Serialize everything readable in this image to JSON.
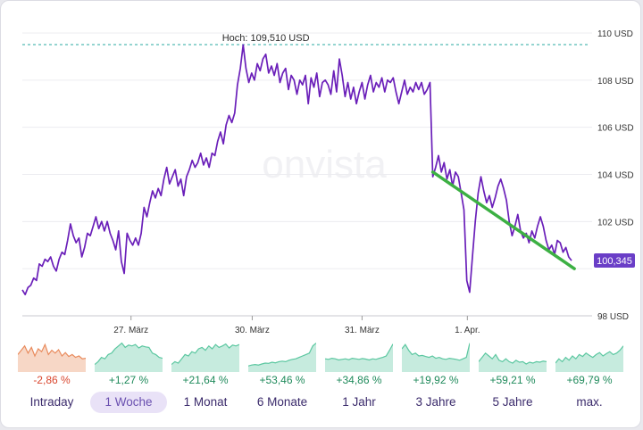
{
  "chart_data": {
    "type": "line",
    "watermark": "onvista",
    "high_label": "Hoch: 109,510 USD",
    "high_value": 109.51,
    "last_value": 100.345,
    "last_label": "100,345",
    "y_ticks": [
      98,
      100,
      102,
      104,
      106,
      108,
      110
    ],
    "y_tick_labels": [
      "98 USD",
      "",
      "102 USD",
      "104 USD",
      "106 USD",
      "108 USD",
      "110 USD"
    ],
    "ylim": [
      98,
      110
    ],
    "xlim": [
      0,
      100
    ],
    "x_ticks": [
      {
        "x": 19.2,
        "label": "27. März"
      },
      {
        "x": 40.6,
        "label": "30. März"
      },
      {
        "x": 60.0,
        "label": "31. März"
      },
      {
        "x": 78.6,
        "label": "1. Apr."
      }
    ],
    "series": [
      {
        "points": [
          [
            0,
            99.1
          ],
          [
            0.5,
            98.9
          ],
          [
            1,
            99.2
          ],
          [
            1.5,
            99.3
          ],
          [
            2,
            99.6
          ],
          [
            2.5,
            99.5
          ],
          [
            3,
            100.2
          ],
          [
            3.5,
            100.1
          ],
          [
            4,
            100.4
          ],
          [
            4.5,
            100.3
          ],
          [
            5,
            100.5
          ],
          [
            5.5,
            100.1
          ],
          [
            6,
            99.9
          ],
          [
            6.5,
            100.4
          ],
          [
            7,
            100.7
          ],
          [
            7.5,
            100.6
          ],
          [
            8,
            101.2
          ],
          [
            8.5,
            101.9
          ],
          [
            9,
            101.4
          ],
          [
            9.5,
            101.1
          ],
          [
            10,
            101.3
          ],
          [
            10.5,
            100.5
          ],
          [
            11,
            100.9
          ],
          [
            11.5,
            101.5
          ],
          [
            12,
            101.4
          ],
          [
            12.5,
            101.8
          ],
          [
            13,
            102.2
          ],
          [
            13.5,
            101.7
          ],
          [
            14,
            102.0
          ],
          [
            14.5,
            101.6
          ],
          [
            15,
            102.0
          ],
          [
            15.5,
            101.5
          ],
          [
            16,
            101.2
          ],
          [
            16.5,
            100.8
          ],
          [
            17,
            101.6
          ],
          [
            17.5,
            100.3
          ],
          [
            18,
            99.8
          ],
          [
            18.5,
            101.5
          ],
          [
            19,
            101.2
          ],
          [
            19.5,
            101.0
          ],
          [
            20,
            101.3
          ],
          [
            20.5,
            101.0
          ],
          [
            21,
            101.5
          ],
          [
            21.5,
            102.6
          ],
          [
            22,
            102.2
          ],
          [
            22.5,
            102.8
          ],
          [
            23,
            103.3
          ],
          [
            23.5,
            103.0
          ],
          [
            24,
            103.4
          ],
          [
            24.5,
            103.1
          ],
          [
            25,
            103.8
          ],
          [
            25.5,
            104.3
          ],
          [
            26,
            103.6
          ],
          [
            26.5,
            103.9
          ],
          [
            27,
            104.2
          ],
          [
            27.5,
            103.5
          ],
          [
            28,
            103.8
          ],
          [
            28.5,
            103.1
          ],
          [
            29,
            103.9
          ],
          [
            29.5,
            104.2
          ],
          [
            30,
            104.6
          ],
          [
            30.5,
            104.3
          ],
          [
            31,
            104.5
          ],
          [
            31.5,
            104.9
          ],
          [
            32,
            104.4
          ],
          [
            32.5,
            104.7
          ],
          [
            33,
            104.3
          ],
          [
            33.5,
            104.9
          ],
          [
            34,
            104.8
          ],
          [
            34.5,
            105.4
          ],
          [
            35,
            105.8
          ],
          [
            35.5,
            105.3
          ],
          [
            36,
            106.1
          ],
          [
            36.5,
            106.5
          ],
          [
            37,
            106.2
          ],
          [
            37.5,
            106.6
          ],
          [
            38,
            107.8
          ],
          [
            38.5,
            108.5
          ],
          [
            39,
            109.5
          ],
          [
            39.5,
            108.5
          ],
          [
            40,
            107.9
          ],
          [
            40.5,
            108.3
          ],
          [
            41,
            108.0
          ],
          [
            41.5,
            108.7
          ],
          [
            42,
            108.4
          ],
          [
            42.5,
            108.9
          ],
          [
            43,
            109.1
          ],
          [
            43.5,
            108.3
          ],
          [
            44,
            108.6
          ],
          [
            44.5,
            108.2
          ],
          [
            45,
            108.7
          ],
          [
            45.5,
            107.9
          ],
          [
            46,
            108.3
          ],
          [
            46.5,
            108.5
          ],
          [
            47,
            107.6
          ],
          [
            47.5,
            108.2
          ],
          [
            48,
            108.0
          ],
          [
            48.5,
            107.4
          ],
          [
            49,
            108.0
          ],
          [
            49.5,
            107.8
          ],
          [
            50,
            108.2
          ],
          [
            50.5,
            107.0
          ],
          [
            51,
            108.1
          ],
          [
            51.5,
            107.7
          ],
          [
            52,
            108.3
          ],
          [
            52.5,
            107.3
          ],
          [
            53,
            107.9
          ],
          [
            53.5,
            108.0
          ],
          [
            54,
            107.8
          ],
          [
            54.5,
            107.4
          ],
          [
            55,
            108.4
          ],
          [
            55.5,
            107.5
          ],
          [
            56,
            108.9
          ],
          [
            56.5,
            108.2
          ],
          [
            57,
            107.3
          ],
          [
            57.5,
            107.9
          ],
          [
            58,
            107.2
          ],
          [
            58.5,
            107.7
          ],
          [
            59,
            107.0
          ],
          [
            59.5,
            107.5
          ],
          [
            60,
            107.9
          ],
          [
            60.5,
            107.2
          ],
          [
            61,
            107.8
          ],
          [
            61.5,
            108.2
          ],
          [
            62,
            107.5
          ],
          [
            62.5,
            107.9
          ],
          [
            63,
            107.7
          ],
          [
            63.5,
            108.1
          ],
          [
            64,
            107.5
          ],
          [
            64.5,
            108.0
          ],
          [
            65,
            107.9
          ],
          [
            65.5,
            108.1
          ],
          [
            66,
            107.5
          ],
          [
            66.5,
            107.0
          ],
          [
            67,
            107.5
          ],
          [
            67.5,
            108.0
          ],
          [
            68,
            107.4
          ],
          [
            68.5,
            107.7
          ],
          [
            69,
            107.5
          ],
          [
            69.5,
            107.9
          ],
          [
            70,
            107.6
          ],
          [
            70.5,
            107.9
          ],
          [
            71,
            107.4
          ],
          [
            71.5,
            107.6
          ],
          [
            72,
            107.9
          ],
          [
            72.5,
            103.9
          ],
          [
            73,
            104.3
          ],
          [
            73.5,
            104.8
          ],
          [
            74,
            104.1
          ],
          [
            74.5,
            104.5
          ],
          [
            75,
            103.8
          ],
          [
            75.5,
            104.2
          ],
          [
            76,
            103.5
          ],
          [
            76.5,
            104.1
          ],
          [
            77,
            103.9
          ],
          [
            77.5,
            103.2
          ],
          [
            78,
            102.5
          ],
          [
            78.5,
            99.5
          ],
          [
            79,
            99.0
          ],
          [
            79.5,
            100.5
          ],
          [
            80,
            102.0
          ],
          [
            80.5,
            103.2
          ],
          [
            81,
            103.9
          ],
          [
            81.5,
            103.3
          ],
          [
            82,
            102.8
          ],
          [
            82.5,
            103.1
          ],
          [
            83,
            102.6
          ],
          [
            83.5,
            103.0
          ],
          [
            84,
            103.5
          ],
          [
            84.5,
            103.8
          ],
          [
            85,
            103.4
          ],
          [
            85.5,
            102.9
          ],
          [
            86,
            102.0
          ],
          [
            86.5,
            101.4
          ],
          [
            87,
            101.8
          ],
          [
            87.5,
            102.3
          ],
          [
            88,
            101.6
          ],
          [
            88.5,
            101.3
          ],
          [
            89,
            101.5
          ],
          [
            89.5,
            101.1
          ],
          [
            90,
            101.6
          ],
          [
            90.5,
            101.3
          ],
          [
            91,
            101.8
          ],
          [
            91.5,
            102.2
          ],
          [
            92,
            101.8
          ],
          [
            92.5,
            101.2
          ],
          [
            93,
            100.8
          ],
          [
            93.5,
            101.0
          ],
          [
            94,
            100.6
          ],
          [
            94.5,
            101.2
          ],
          [
            95,
            101.1
          ],
          [
            95.5,
            100.7
          ],
          [
            96,
            100.9
          ],
          [
            96.5,
            100.5
          ],
          [
            97,
            100.345
          ]
        ]
      }
    ],
    "trendline": {
      "from": [
        72.5,
        104.1
      ],
      "to": [
        97.5,
        100.0
      ]
    }
  },
  "colors": {
    "line": "#6a1fb9",
    "trend": "#3cb043",
    "high_line": "#28a9a2",
    "badge": "#6a3ec7",
    "positive": "#1f8a5b",
    "negative": "#d9462e",
    "spark_positive": "#5bc7a0",
    "spark_negative": "#e98b5d"
  },
  "timeframes": [
    {
      "label": "Intraday",
      "change": "-2,86 %",
      "sign": "neg",
      "active": false,
      "spark": [
        0.55,
        0.7,
        0.85,
        0.6,
        0.8,
        0.5,
        0.75,
        0.65,
        0.9,
        0.55,
        0.7,
        0.6,
        0.72,
        0.5,
        0.62,
        0.48,
        0.55,
        0.45,
        0.5,
        0.4,
        0.42
      ]
    },
    {
      "label": "1 Woche",
      "change": "+1,27 %",
      "sign": "pos",
      "active": true,
      "spark": [
        0.2,
        0.3,
        0.45,
        0.4,
        0.55,
        0.6,
        0.75,
        0.85,
        0.95,
        0.8,
        0.88,
        0.85,
        0.9,
        0.78,
        0.85,
        0.82,
        0.8,
        0.6,
        0.55,
        0.45,
        0.42
      ]
    },
    {
      "label": "1 Monat",
      "change": "+21,64 %",
      "sign": "pos",
      "active": false,
      "spark": [
        0.2,
        0.3,
        0.25,
        0.4,
        0.55,
        0.5,
        0.65,
        0.6,
        0.75,
        0.8,
        0.7,
        0.85,
        0.75,
        0.9,
        0.8,
        0.85,
        0.92,
        0.78,
        0.88,
        0.85,
        0.9
      ]
    },
    {
      "label": "6 Monate",
      "change": "+53,46 %",
      "sign": "pos",
      "active": false,
      "spark": [
        0.15,
        0.18,
        0.2,
        0.18,
        0.22,
        0.25,
        0.24,
        0.28,
        0.26,
        0.3,
        0.32,
        0.3,
        0.35,
        0.38,
        0.4,
        0.45,
        0.5,
        0.55,
        0.6,
        0.85,
        0.95
      ]
    },
    {
      "label": "1 Jahr",
      "change": "+34,86 %",
      "sign": "pos",
      "active": false,
      "spark": [
        0.4,
        0.38,
        0.42,
        0.4,
        0.36,
        0.38,
        0.4,
        0.37,
        0.42,
        0.4,
        0.38,
        0.41,
        0.39,
        0.36,
        0.4,
        0.38,
        0.42,
        0.45,
        0.5,
        0.7,
        0.92
      ]
    },
    {
      "label": "3 Jahre",
      "change": "+19,92 %",
      "sign": "pos",
      "active": false,
      "spark": [
        0.75,
        0.9,
        0.7,
        0.55,
        0.6,
        0.5,
        0.52,
        0.48,
        0.45,
        0.5,
        0.42,
        0.45,
        0.4,
        0.38,
        0.42,
        0.4,
        0.38,
        0.35,
        0.4,
        0.45,
        0.95
      ]
    },
    {
      "label": "5 Jahre",
      "change": "+59,21 %",
      "sign": "pos",
      "active": false,
      "spark": [
        0.3,
        0.45,
        0.6,
        0.5,
        0.4,
        0.55,
        0.35,
        0.3,
        0.4,
        0.3,
        0.25,
        0.35,
        0.28,
        0.3,
        0.22,
        0.28,
        0.25,
        0.3,
        0.28,
        0.32,
        0.3
      ]
    },
    {
      "label": "max.",
      "change": "+69,79 %",
      "sign": "pos",
      "active": false,
      "spark": [
        0.25,
        0.4,
        0.3,
        0.45,
        0.35,
        0.5,
        0.4,
        0.55,
        0.48,
        0.6,
        0.52,
        0.45,
        0.55,
        0.62,
        0.5,
        0.58,
        0.65,
        0.55,
        0.6,
        0.7,
        0.85
      ]
    }
  ]
}
